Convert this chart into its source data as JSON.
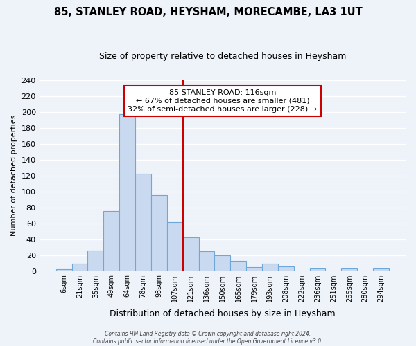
{
  "title": "85, STANLEY ROAD, HEYSHAM, MORECAMBE, LA3 1UT",
  "subtitle": "Size of property relative to detached houses in Heysham",
  "xlabel": "Distribution of detached houses by size in Heysham",
  "ylabel": "Number of detached properties",
  "bar_labels": [
    "6sqm",
    "21sqm",
    "35sqm",
    "49sqm",
    "64sqm",
    "78sqm",
    "93sqm",
    "107sqm",
    "121sqm",
    "136sqm",
    "150sqm",
    "165sqm",
    "179sqm",
    "193sqm",
    "208sqm",
    "222sqm",
    "236sqm",
    "251sqm",
    "265sqm",
    "280sqm",
    "294sqm"
  ],
  "bar_values": [
    2,
    9,
    26,
    75,
    197,
    122,
    95,
    61,
    42,
    25,
    20,
    13,
    5,
    9,
    6,
    0,
    3,
    0,
    3,
    0,
    3
  ],
  "bar_color": "#c9daf0",
  "bar_edge_color": "#6fa8d8",
  "ylim": [
    0,
    240
  ],
  "yticks": [
    0,
    20,
    40,
    60,
    80,
    100,
    120,
    140,
    160,
    180,
    200,
    220,
    240
  ],
  "vline_color": "#cc0000",
  "vline_index": 8,
  "annotation_title": "85 STANLEY ROAD: 116sqm",
  "annotation_line1": "← 67% of detached houses are smaller (481)",
  "annotation_line2": "32% of semi-detached houses are larger (228) →",
  "annotation_box_color": "#ffffff",
  "annotation_box_edge": "#cc0000",
  "footer_line1": "Contains HM Land Registry data © Crown copyright and database right 2024.",
  "footer_line2": "Contains public sector information licensed under the Open Government Licence v3.0.",
  "bg_color": "#eef2f9",
  "grid_color": "#ffffff",
  "title_fontsize": 10.5,
  "subtitle_fontsize": 9,
  "ylabel_fontsize": 8,
  "xlabel_fontsize": 9
}
